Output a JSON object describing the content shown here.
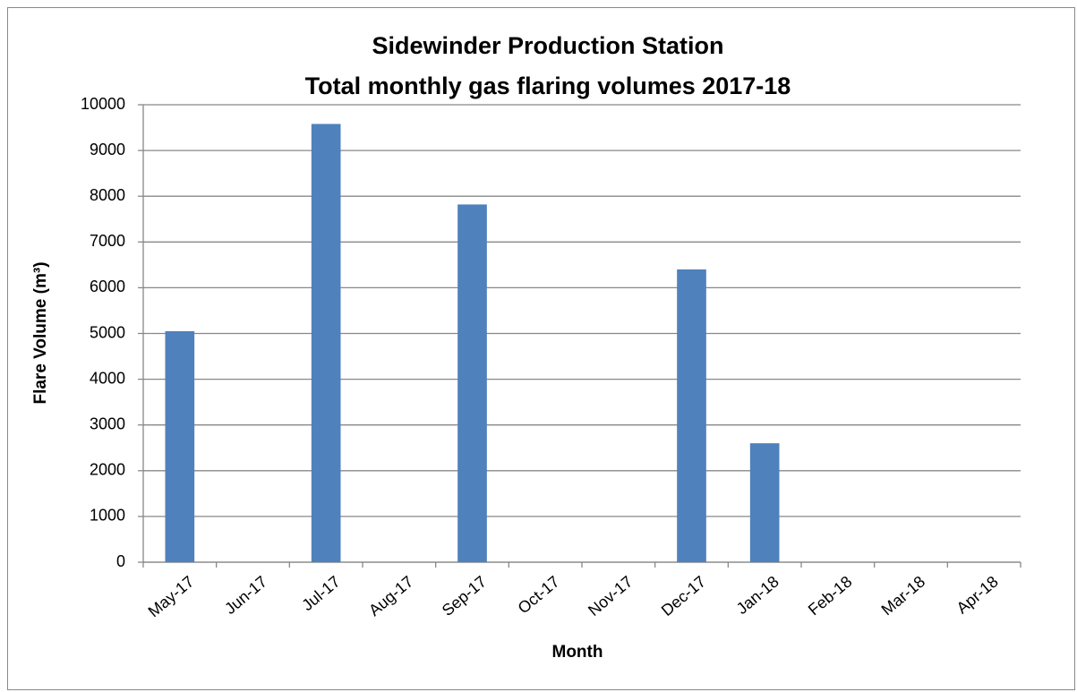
{
  "chart_data": {
    "type": "bar",
    "title": [
      "Sidewinder Production Station",
      "Total monthly gas flaring volumes 2017-18"
    ],
    "x_label": "Month",
    "y_label": "Flare Volume (m³)",
    "categories": [
      "May-17",
      "Jun-17",
      "Jul-17",
      "Aug-17",
      "Sep-17",
      "Oct-17",
      "Nov-17",
      "Dec-17",
      "Jan-18",
      "Feb-18",
      "Mar-18",
      "Apr-18"
    ],
    "values": [
      5050,
      0,
      9580,
      0,
      7820,
      0,
      0,
      6400,
      2600,
      0,
      0,
      0
    ],
    "color": "#4f81bd",
    "ylim": [
      0,
      10000
    ],
    "yticks": [
      0,
      1000,
      2000,
      3000,
      4000,
      5000,
      6000,
      7000,
      8000,
      9000,
      10000
    ],
    "grid": true
  }
}
